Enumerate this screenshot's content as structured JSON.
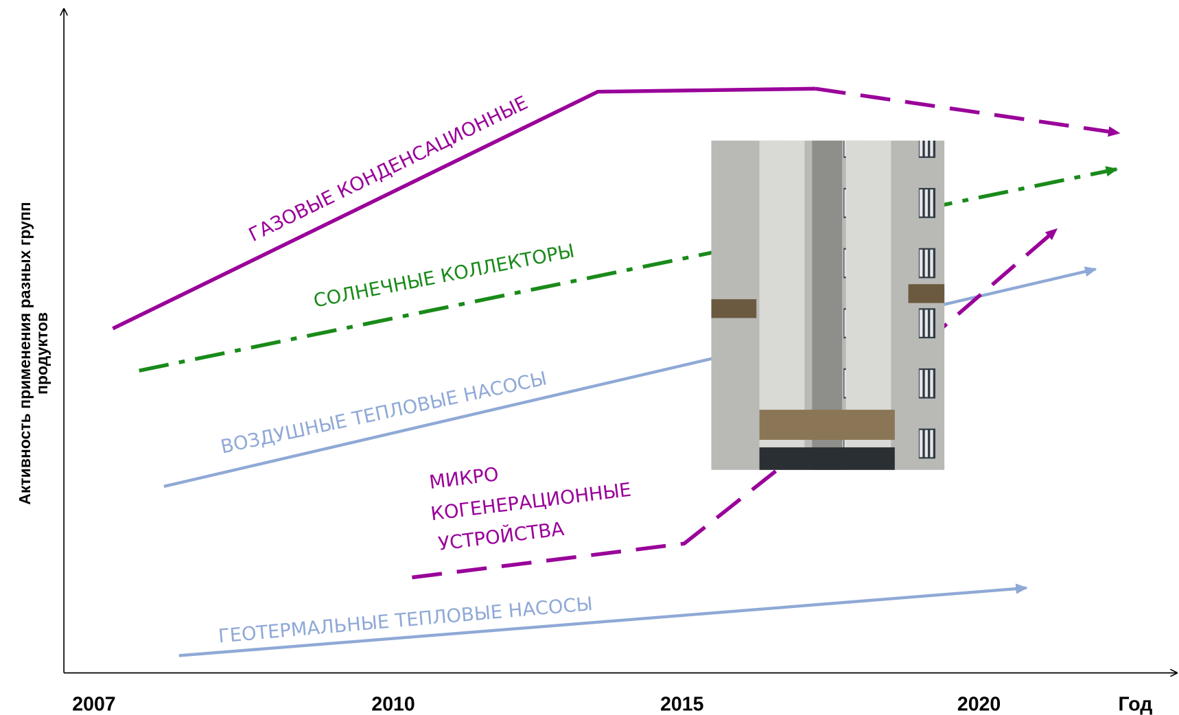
{
  "y_axis_label": [
    "Активность применения разных групп",
    "продуктов"
  ],
  "x_axis_labels": [
    "2007",
    "2010",
    "2015",
    "2020",
    "Год"
  ],
  "line_labels": {
    "gas": "ГАЗОВЫЕ КОНДЕНСАЦИОННЫЕ",
    "solar": "СОЛНЕЧНЫЕ КОЛЛЕКТОРЫ",
    "air": "ВОЗДУШНЫЕ ТЕПЛОВЫЕ НАСОСЫ",
    "micro": [
      "МИКРО",
      "КОГЕНЕРАЦИОННЫЕ",
      "УСТРОЙСТВА"
    ],
    "geo": "ГЕОТЕРМАЛЬНЫЕ ТЕПЛОВЫЕ НАСОСЫ"
  }
}
